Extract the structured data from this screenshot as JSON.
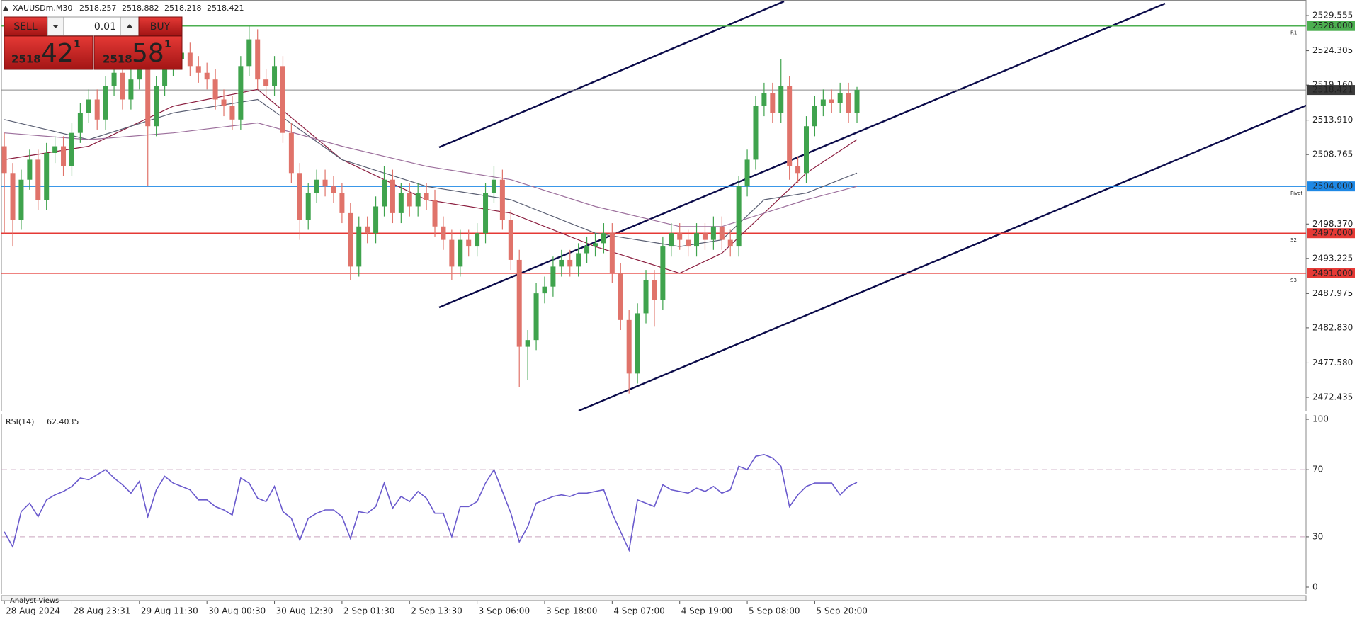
{
  "chart_data": [
    {
      "type": "candlestick",
      "symbol": "XAUUSDm,M30",
      "ohlc": [
        2518.257,
        2518.882,
        2518.218,
        2518.421
      ],
      "up_color": "#3fa34d",
      "down_color": "#e0736a",
      "ylim": [
        2470.42,
        2531.89
      ],
      "yticks": [
        2529.555,
        2524.305,
        {
          "value": 2519.16,
          "label": "2519.160"
        },
        {
          "value": 2513.91,
          "label": "2513.910"
        },
        2508.765,
        {
          "value": 2498.37,
          "label": "2498.370"
        },
        2493.225,
        2487.975,
        {
          "value": 2482.83,
          "label": "2482.830"
        },
        {
          "value": 2477.58,
          "label": "2477.580"
        },
        2472.435
      ],
      "categories": [
        "28 Aug 2024",
        null,
        null,
        null,
        null,
        null,
        null,
        null,
        "28 Aug 23:31",
        null,
        null,
        null,
        null,
        null,
        null,
        null,
        "29 Aug 11:30",
        null,
        null,
        null,
        null,
        null,
        null,
        null,
        "30 Aug 00:30",
        null,
        null,
        null,
        null,
        null,
        null,
        null,
        "30 Aug 12:30",
        null,
        null,
        null,
        null,
        null,
        null,
        null,
        "2 Sep 01:30",
        null,
        null,
        null,
        null,
        null,
        null,
        null,
        "2 Sep 13:30",
        null,
        null,
        null,
        null,
        null,
        null,
        null,
        "3 Sep 06:00",
        null,
        null,
        null,
        null,
        null,
        null,
        null,
        "3 Sep 18:00",
        null,
        null,
        null,
        null,
        null,
        null,
        null,
        "4 Sep 07:00",
        null,
        null,
        null,
        null,
        null,
        null,
        null,
        "4 Sep 19:00",
        null,
        null,
        null,
        null,
        null,
        null,
        null,
        "5 Sep 08:00",
        null,
        null,
        null,
        null,
        null,
        null,
        null,
        "5 Sep 20:00",
        null,
        null,
        null,
        null,
        null
      ],
      "open": [
        2510,
        2506,
        2499,
        2505,
        2508,
        2502,
        2509,
        2510,
        2507,
        2512,
        2515,
        2517,
        2514,
        2519,
        2521,
        2517,
        2520,
        2525,
        2513,
        2519,
        2522,
        2523,
        2524,
        2522,
        2521,
        2520,
        2517,
        2516,
        2514,
        2522,
        2526,
        2520,
        2519,
        2522,
        2512,
        2506,
        2499,
        2503,
        2505,
        2504,
        2503,
        2500,
        2492,
        2498,
        2497,
        2501,
        2505,
        2500,
        2503,
        2501,
        2503,
        2502,
        2498,
        2496,
        2492,
        2496,
        2495,
        2497,
        2503,
        2505,
        2499,
        2493,
        2480,
        2481,
        2488,
        2489,
        2492,
        2493,
        2492,
        2494,
        2495,
        2495.5,
        2497,
        2491,
        2484,
        2476,
        2485,
        2490,
        2487,
        2495,
        2497,
        2496,
        2495,
        2497,
        2496,
        2498,
        2496,
        2495,
        2504,
        2508,
        2516,
        2518,
        2515,
        2519,
        2507,
        2506,
        2513,
        2516,
        2517,
        2516.5,
        2518,
        2515
      ],
      "high": [
        2512,
        2507.5,
        2506.5,
        2509.5,
        2509.5,
        2510.5,
        2511.5,
        2511.5,
        2513.5,
        2516.5,
        2518.5,
        2518.5,
        2520.5,
        2522.5,
        2522.5,
        2521.5,
        2528,
        2526.5,
        2520.5,
        2523.5,
        2524.5,
        2525.5,
        2525.5,
        2523.5,
        2522.5,
        2521.5,
        2518.5,
        2517.5,
        2523.5,
        2528,
        2527.5,
        2521.5,
        2523.5,
        2523.5,
        2513.5,
        2507.5,
        2504.5,
        2506.5,
        2506.5,
        2505.5,
        2504.5,
        2501.5,
        2499.5,
        2499.5,
        2502.5,
        2507,
        2506.5,
        2504.5,
        2504.5,
        2504.5,
        2504.5,
        2503.5,
        2499.5,
        2497.5,
        2497.5,
        2497.5,
        2498.5,
        2504.5,
        2507,
        2506.5,
        2500.5,
        2494.5,
        2482.5,
        2489.5,
        2490.5,
        2493.5,
        2494.5,
        2494.5,
        2495.5,
        2496.5,
        2497,
        2498.5,
        2498.5,
        2492.5,
        2485.5,
        2486.5,
        2491.5,
        2491.5,
        2496.5,
        2498.5,
        2498.5,
        2497.5,
        2498.5,
        2498.5,
        2499.5,
        2499.5,
        2497.5,
        2505.5,
        2509.5,
        2517.5,
        2519.5,
        2519.5,
        2523,
        2520.5,
        2508.5,
        2514.5,
        2517.5,
        2518.5,
        2518.5,
        2519.5,
        2519.5,
        2518.882
      ],
      "low": [
        2497,
        2495,
        2497.5,
        2503.5,
        2500.5,
        2500.5,
        2507.5,
        2505.5,
        2505.5,
        2510.5,
        2513.5,
        2512.5,
        2512.5,
        2517.5,
        2515.5,
        2515.5,
        2518.5,
        2504,
        2511.5,
        2517.5,
        2520.5,
        2521.5,
        2520.5,
        2519.5,
        2518.5,
        2515.5,
        2514.5,
        2512.5,
        2512.5,
        2520.5,
        2518.5,
        2517.5,
        2517.5,
        2510.5,
        2504.5,
        2496,
        2497.5,
        2501.5,
        2502.5,
        2501.5,
        2498.5,
        2490,
        2490.5,
        2495.5,
        2495.5,
        2499.5,
        2498.5,
        2498.5,
        2499.5,
        2499.5,
        2500.5,
        2496.5,
        2494.5,
        2490,
        2490.5,
        2493.5,
        2493.5,
        2495.5,
        2501.5,
        2497.5,
        2491.5,
        2474,
        2475,
        2479.5,
        2486.5,
        2487.5,
        2490.5,
        2490.5,
        2490.5,
        2492.5,
        2493.5,
        2494,
        2489.5,
        2482.5,
        2473,
        2474.5,
        2483.5,
        2483,
        2485.5,
        2493.5,
        2494.5,
        2493.5,
        2493.5,
        2494.5,
        2494.5,
        2494.5,
        2493.5,
        2493.5,
        2502.5,
        2506.5,
        2514.5,
        2513.5,
        2513.5,
        2505,
        2504.5,
        2504.5,
        2511.5,
        2514.5,
        2515,
        2515,
        2513.5,
        2513.5
      ],
      "close": [
        2506,
        2499,
        2505,
        2508,
        2502,
        2509,
        2510,
        2507,
        2512,
        2515,
        2517,
        2514,
        2519,
        2521,
        2517,
        2520,
        2525,
        2513,
        2519,
        2522,
        2523,
        2524,
        2522,
        2521,
        2520,
        2517,
        2516,
        2514,
        2522,
        2526,
        2520,
        2519,
        2522,
        2512,
        2506,
        2499,
        2503,
        2505,
        2504,
        2503,
        2500,
        2492,
        2498,
        2497,
        2501,
        2505,
        2500,
        2503,
        2501,
        2503,
        2502,
        2498,
        2496,
        2492,
        2496,
        2495,
        2497,
        2503,
        2505,
        2499,
        2493,
        2480,
        2481,
        2488,
        2489,
        2492,
        2493,
        2492,
        2494,
        2495,
        2495.5,
        2497,
        2491,
        2484,
        2476,
        2485,
        2490,
        2487,
        2495,
        2497,
        2496,
        2495,
        2497,
        2496,
        2498,
        2496,
        2495,
        2504,
        2508,
        2516,
        2518,
        2515,
        2519,
        2507,
        2506,
        2513,
        2516,
        2517,
        2516.5,
        2518,
        2515,
        2518.421
      ],
      "moving_averages": [
        {
          "color": "#8b1e3f",
          "x": [
            0,
            10,
            20,
            30,
            40,
            50,
            60,
            70,
            80,
            85,
            90,
            95,
            101
          ],
          "values": [
            2508,
            2510,
            2516,
            2518.5,
            2508,
            2502,
            2500,
            2495,
            2491,
            2494,
            2500,
            2506,
            2511
          ]
        },
        {
          "color": "#5a5f73",
          "x": [
            0,
            10,
            20,
            30,
            40,
            50,
            60,
            70,
            80,
            85,
            90,
            95,
            101
          ],
          "values": [
            2514,
            2511,
            2515,
            2517,
            2508,
            2504,
            2502,
            2497,
            2495,
            2496,
            2502,
            2503,
            2506
          ]
        },
        {
          "color": "#9c6f9c",
          "x": [
            0,
            10,
            20,
            30,
            40,
            50,
            60,
            70,
            80,
            85,
            90,
            95,
            101
          ],
          "values": [
            2512,
            2511,
            2512,
            2513.5,
            2510,
            2507,
            2505,
            2501,
            2498,
            2498,
            2500,
            2502,
            2504
          ]
        }
      ],
      "levels": [
        {
          "value": 2528,
          "label": "2528.000",
          "name": "R1",
          "color": "#4caf50"
        },
        {
          "value": 2504,
          "label": "2504.000",
          "name": "Pivot",
          "color": "#1e88e5"
        },
        {
          "value": 2497,
          "label": "2497.000",
          "name": "S2",
          "color": "#e53935"
        },
        {
          "value": 2491,
          "label": "2491.000",
          "name": "S3",
          "color": "#e53935"
        }
      ],
      "price_line": {
        "value": 2518.421,
        "label": "2518.421",
        "color": "#3a3a3a"
      },
      "trade_panel": {
        "sell": "SELL",
        "buy": "BUY",
        "lot": 0.01,
        "bid": {
          "prefix": 2518,
          "pips": 42,
          "point": 1
        },
        "ask": {
          "prefix": 2518,
          "pips": 58,
          "point": 1
        }
      }
    },
    {
      "type": "line",
      "title": "RSI(14)",
      "last": 62.4035,
      "color": "#6a5acd",
      "ylim": [
        -3.8,
        103.4
      ],
      "yticks": [
        100,
        70,
        30,
        0
      ],
      "levels": [
        70,
        30
      ],
      "values": [
        33,
        24,
        45,
        50,
        42,
        52,
        55,
        57,
        60,
        65,
        64,
        67,
        70,
        65,
        61,
        56,
        63,
        42,
        58,
        66,
        62,
        60,
        58,
        52,
        52,
        48,
        46,
        43,
        65,
        62,
        53,
        51,
        60,
        45,
        41,
        28,
        41,
        44,
        46,
        46,
        42,
        29,
        45,
        44,
        48,
        62,
        47,
        54,
        51,
        57,
        53,
        44,
        44,
        30,
        48,
        48,
        51,
        62,
        70,
        57,
        44,
        27,
        36,
        50,
        52,
        54,
        55,
        54,
        56,
        56,
        57,
        58,
        44,
        33,
        22,
        52,
        50,
        48,
        61,
        58,
        57,
        56,
        59,
        57,
        60,
        56,
        58,
        72,
        70,
        78,
        79,
        77,
        72,
        48,
        55,
        60,
        62,
        62,
        62,
        55,
        60,
        62.4035
      ]
    }
  ],
  "footer_tab": "Analyst Views"
}
